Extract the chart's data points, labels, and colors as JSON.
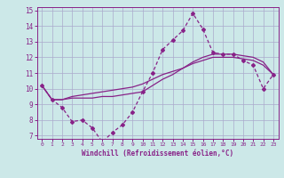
{
  "xlabel": "Windchill (Refroidissement éolien,°C)",
  "bg_color": "#cce8e8",
  "grid_color": "#aaaacc",
  "line_color": "#882288",
  "xlim": [
    -0.5,
    23.5
  ],
  "ylim": [
    6.8,
    15.2
  ],
  "yticks": [
    7,
    8,
    9,
    10,
    11,
    12,
    13,
    14,
    15
  ],
  "xticks": [
    0,
    1,
    2,
    3,
    4,
    5,
    6,
    7,
    8,
    9,
    10,
    11,
    12,
    13,
    14,
    15,
    16,
    17,
    18,
    19,
    20,
    21,
    22,
    23
  ],
  "series1_x": [
    0,
    1,
    2,
    3,
    4,
    5,
    6,
    7,
    8,
    9,
    10,
    11,
    12,
    13,
    14,
    15,
    16,
    17,
    18,
    19,
    20,
    21,
    22,
    23
  ],
  "series1_y": [
    10.2,
    9.3,
    8.8,
    7.9,
    8.0,
    7.5,
    6.6,
    7.2,
    7.7,
    8.5,
    9.8,
    11.0,
    12.5,
    13.1,
    13.7,
    14.8,
    13.8,
    12.3,
    12.2,
    12.2,
    11.8,
    11.5,
    10.0,
    10.9
  ],
  "series2_x": [
    0,
    1,
    2,
    3,
    4,
    5,
    6,
    7,
    8,
    9,
    10,
    11,
    12,
    13,
    14,
    15,
    16,
    17,
    18,
    19,
    20,
    21,
    22,
    23
  ],
  "series2_y": [
    10.2,
    9.3,
    9.3,
    9.4,
    9.4,
    9.4,
    9.5,
    9.5,
    9.6,
    9.7,
    9.8,
    10.2,
    10.6,
    10.9,
    11.3,
    11.7,
    12.0,
    12.2,
    12.2,
    12.2,
    12.1,
    12.0,
    11.7,
    10.9
  ],
  "series3_x": [
    0,
    1,
    2,
    3,
    4,
    5,
    6,
    7,
    8,
    9,
    10,
    11,
    12,
    13,
    14,
    15,
    16,
    17,
    18,
    19,
    20,
    21,
    22,
    23
  ],
  "series3_y": [
    10.2,
    9.3,
    9.3,
    9.5,
    9.6,
    9.7,
    9.8,
    9.9,
    10.0,
    10.1,
    10.3,
    10.6,
    10.9,
    11.1,
    11.3,
    11.6,
    11.8,
    12.0,
    12.0,
    12.0,
    11.9,
    11.8,
    11.5,
    10.9
  ]
}
